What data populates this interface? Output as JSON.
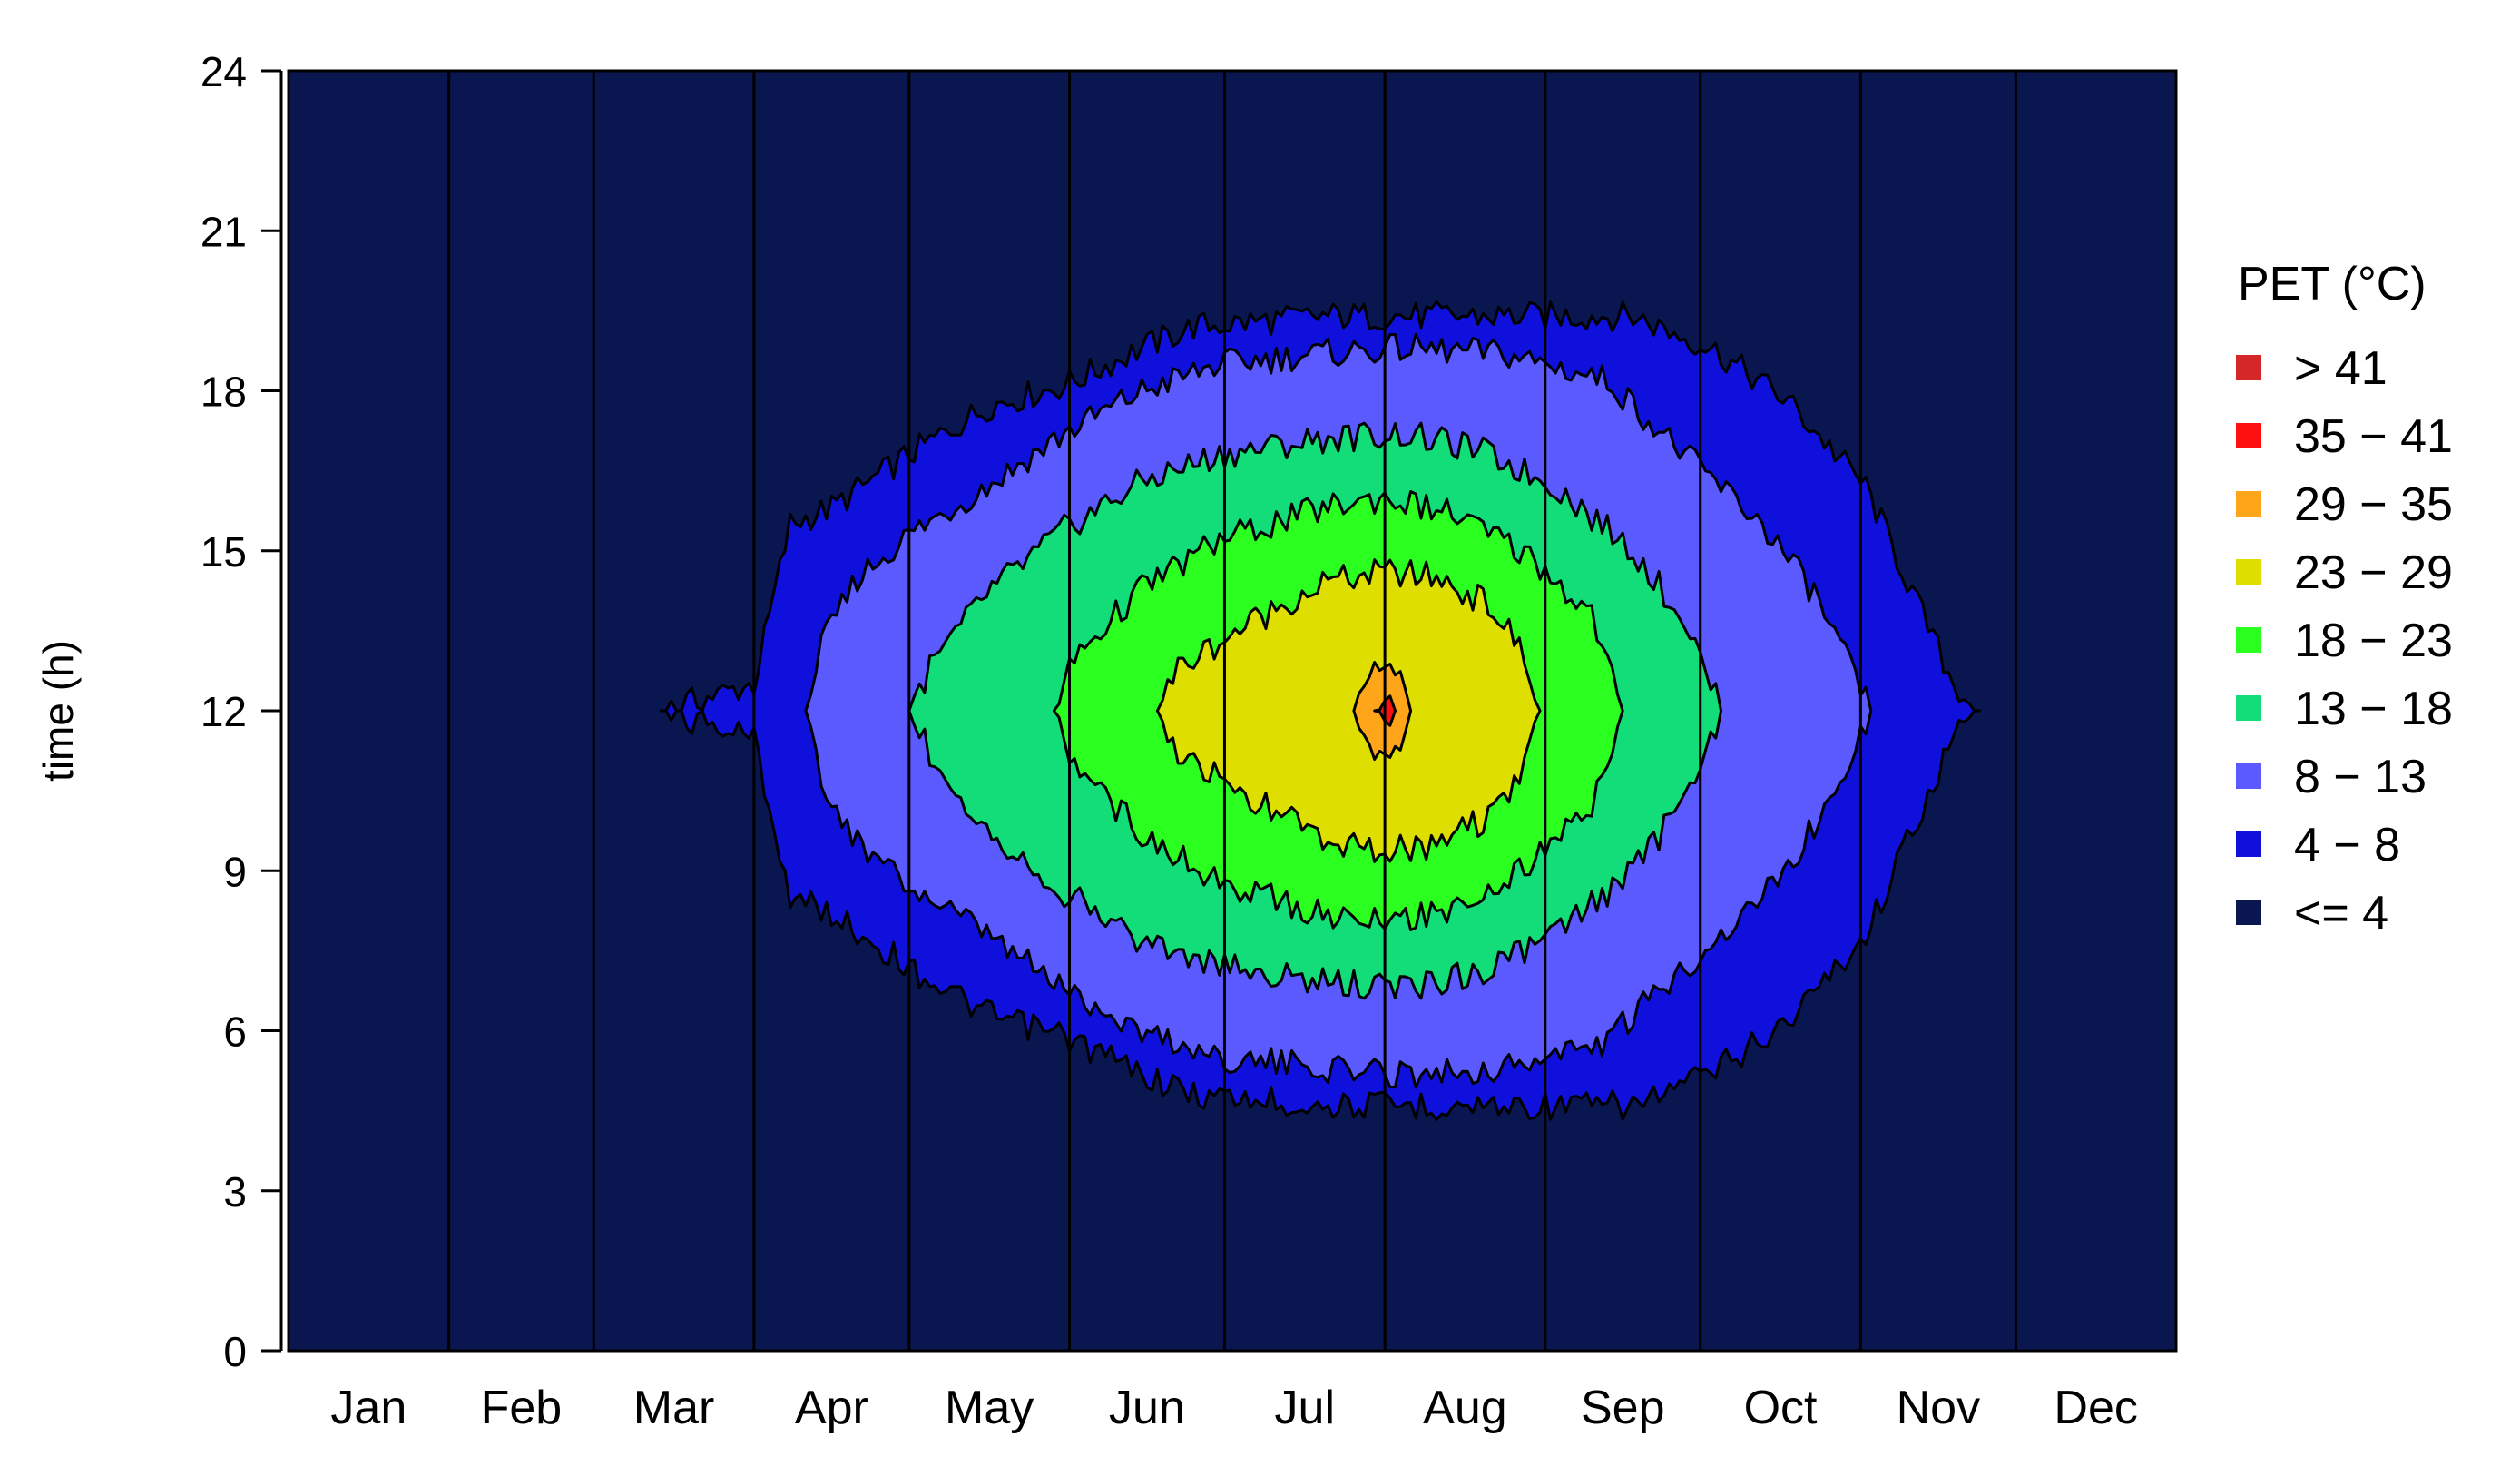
{
  "chart_data": {
    "type": "heatmap",
    "subtype": "filled-contour",
    "ylabel": "time (h)",
    "xlabel": "",
    "x_categories": [
      "Jan",
      "Feb",
      "Mar",
      "Apr",
      "May",
      "Jun",
      "Jul",
      "Aug",
      "Sep",
      "Oct",
      "Nov",
      "Dec"
    ],
    "y_ticks": [
      "0",
      "3",
      "6",
      "9",
      "12",
      "15",
      "18",
      "21",
      "24"
    ],
    "ylim": [
      0,
      24
    ],
    "xlim_days": [
      0,
      365
    ],
    "month_boundaries_days": [
      0,
      31,
      59,
      90,
      120,
      151,
      181,
      212,
      243,
      273,
      304,
      334,
      365
    ],
    "legend": {
      "title": "PET (°C)",
      "position": "right",
      "entries": [
        {
          "label": "> 41",
          "color": "#d62728"
        },
        {
          "label": "35 − 41",
          "color": "#ff1010"
        },
        {
          "label": "29 − 35",
          "color": "#ffa51a"
        },
        {
          "label": "23 − 29",
          "color": "#dede00"
        },
        {
          "label": "18 − 23",
          "color": "#2aff20"
        },
        {
          "label": "13 − 18",
          "color": "#12dd78"
        },
        {
          "label": "8 − 13",
          "color": "#5a5aff"
        },
        {
          "label": "4 − 8",
          "color": "#1010dd"
        },
        {
          "label": "<= 4",
          "color": "#0a1650"
        }
      ]
    },
    "contour_levels": [
      {
        "band": "4 − 8",
        "color": "#1010dd",
        "half_width_h": [
          [
            72,
            0
          ],
          [
            90,
            0.5
          ],
          [
            97,
            3.5
          ],
          [
            105,
            3.8
          ],
          [
            120,
            4.8
          ],
          [
            135,
            5.7
          ],
          [
            150,
            6.1
          ],
          [
            165,
            6.8
          ],
          [
            175,
            7.2
          ],
          [
            200,
            7.4
          ],
          [
            215,
            7.4
          ],
          [
            240,
            7.4
          ],
          [
            260,
            7.4
          ],
          [
            275,
            6.8
          ],
          [
            290,
            5.8
          ],
          [
            305,
            4.2
          ],
          [
            315,
            2.0
          ],
          [
            322,
            0.5
          ],
          [
            327,
            0
          ]
        ]
      },
      {
        "band": "8 − 13",
        "color": "#5a5aff",
        "half_width_h": [
          [
            100,
            0
          ],
          [
            103,
            1.2
          ],
          [
            110,
            2.5
          ],
          [
            120,
            3.3
          ],
          [
            135,
            4.2
          ],
          [
            150,
            5.2
          ],
          [
            165,
            6.0
          ],
          [
            180,
            6.5
          ],
          [
            200,
            6.7
          ],
          [
            215,
            6.8
          ],
          [
            235,
            6.7
          ],
          [
            255,
            6.2
          ],
          [
            270,
            4.8
          ],
          [
            285,
            3.5
          ],
          [
            295,
            2.2
          ],
          [
            303,
            0.6
          ],
          [
            306,
            0
          ]
        ]
      },
      {
        "band": "13 − 18",
        "color": "#12dd78",
        "half_width_h": [
          [
            120,
            0
          ],
          [
            124,
            0.8
          ],
          [
            135,
            2.2
          ],
          [
            150,
            3.4
          ],
          [
            165,
            4.3
          ],
          [
            180,
            4.8
          ],
          [
            200,
            5.1
          ],
          [
            215,
            5.2
          ],
          [
            230,
            4.9
          ],
          [
            245,
            4.2
          ],
          [
            260,
            3.0
          ],
          [
            270,
            1.7
          ],
          [
            277,
            0
          ]
        ]
      },
      {
        "band": "18 − 23",
        "color": "#2aff20",
        "half_width_h": [
          [
            148,
            0
          ],
          [
            152,
            1.0
          ],
          [
            165,
            2.3
          ],
          [
            180,
            3.2
          ],
          [
            200,
            3.8
          ],
          [
            212,
            4.0
          ],
          [
            225,
            3.7
          ],
          [
            240,
            2.9
          ],
          [
            252,
            1.8
          ],
          [
            258,
            0
          ]
        ]
      },
      {
        "band": "23 − 29",
        "color": "#dede00",
        "half_width_h": [
          [
            168,
            0
          ],
          [
            172,
            0.8
          ],
          [
            185,
            1.6
          ],
          [
            200,
            2.4
          ],
          [
            212,
            2.6
          ],
          [
            222,
            2.5
          ],
          [
            232,
            2.0
          ],
          [
            238,
            1.2
          ],
          [
            242,
            0
          ]
        ]
      },
      {
        "band": "29 − 35",
        "color": "#ffa51a",
        "half_width_h": [
          [
            206,
            0
          ],
          [
            208,
            0.7
          ],
          [
            212,
            0.9
          ],
          [
            215,
            0.7
          ],
          [
            217,
            0
          ]
        ]
      },
      {
        "band": "35 − 41",
        "color": "#ff1010",
        "half_width_h": [
          [
            210,
            0
          ],
          [
            211,
            0.15
          ],
          [
            212,
            0.2
          ],
          [
            213,
            0.15
          ],
          [
            214,
            0
          ]
        ]
      }
    ]
  }
}
